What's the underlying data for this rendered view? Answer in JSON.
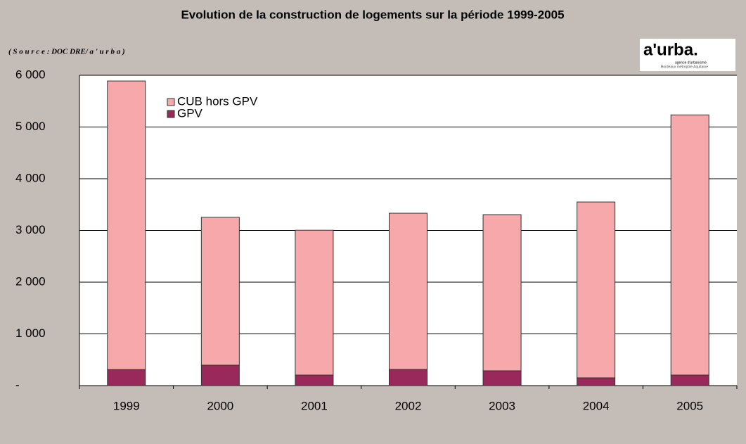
{
  "chart_data": {
    "type": "bar",
    "stacked": true,
    "title": "Evolution de la construction de logements sur la période 1999-2005",
    "subtitle": "( S o u r c e  :  DOC DRE/ a ' u r b a )",
    "logo": {
      "name": "a'urba.",
      "line1": "agence d'urbanisme",
      "line2": "Bordeaux métropole Aquitaine"
    },
    "categories": [
      "1999",
      "2000",
      "2001",
      "2002",
      "2003",
      "2004",
      "2005"
    ],
    "series": [
      {
        "name": "GPV",
        "color": "#99295a",
        "values": [
          310,
          395,
          204,
          313,
          286,
          150,
          204
        ]
      },
      {
        "name": "CUB hors GPV",
        "color": "#f7a8aa",
        "values": [
          5580,
          2860,
          2800,
          3020,
          3020,
          3400,
          5030
        ]
      }
    ],
    "ylim": [
      0,
      6000
    ],
    "yticks": [
      {
        "value": 0,
        "label": "-"
      },
      {
        "value": 1000,
        "label": "1 000"
      },
      {
        "value": 2000,
        "label": "2 000"
      },
      {
        "value": 3000,
        "label": "3 000"
      },
      {
        "value": 4000,
        "label": "4 000"
      },
      {
        "value": 5000,
        "label": "5 000"
      },
      {
        "value": 6000,
        "label": "6 000"
      }
    ],
    "grid": true
  }
}
